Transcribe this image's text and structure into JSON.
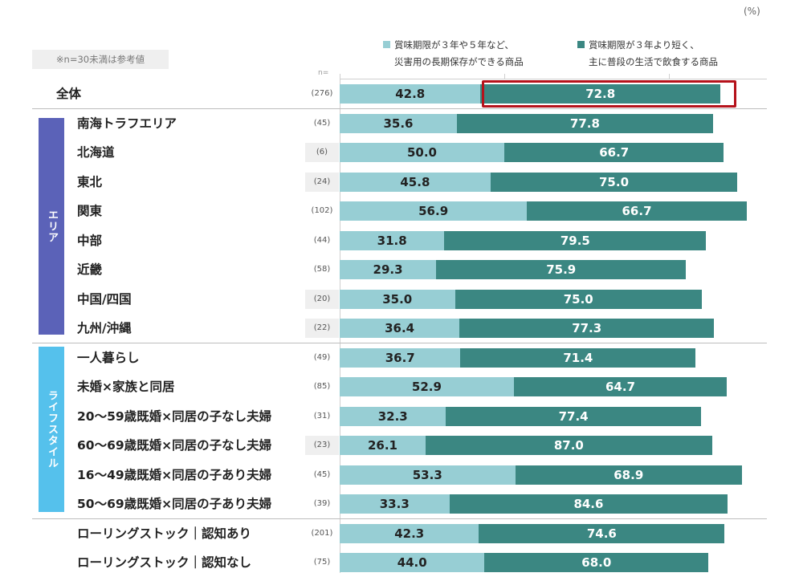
{
  "chart_data": {
    "type": "bar",
    "orientation": "horizontal",
    "stacked": true,
    "unit_label": "(%)",
    "note": "※n=30未満は参考値",
    "n_header": "n=",
    "legend": [
      {
        "line1": "賞味期限が３年や５年など、",
        "line2": "災害用の長期保存ができる商品",
        "color": "#97ced4"
      },
      {
        "line1": "賞味期限が３年より短く、",
        "line2": "主に普段の生活で飲食する商品",
        "color": "#3b8782"
      }
    ],
    "groups": [
      {
        "name": "",
        "label": "",
        "color": ""
      },
      {
        "name": "area",
        "label": "エリア",
        "color": "#5b62b8"
      },
      {
        "name": "life",
        "label": "ライフスタイル",
        "color": "#55c1ec"
      },
      {
        "name": "rolling",
        "label": "",
        "color": ""
      }
    ],
    "rows": [
      {
        "label": "全体",
        "n": "(276)",
        "a": 42.8,
        "b": 72.8,
        "group": 0,
        "shade": false,
        "highlight": true
      },
      {
        "label": "南海トラフエリア",
        "n": "(45)",
        "a": 35.6,
        "b": 77.8,
        "group": 1,
        "shade": false
      },
      {
        "label": "北海道",
        "n": "(6)",
        "a": 50.0,
        "b": 66.7,
        "group": 1,
        "shade": true
      },
      {
        "label": "東北",
        "n": "(24)",
        "a": 45.8,
        "b": 75.0,
        "group": 1,
        "shade": true
      },
      {
        "label": "関東",
        "n": "(102)",
        "a": 56.9,
        "b": 66.7,
        "group": 1,
        "shade": false
      },
      {
        "label": "中部",
        "n": "(44)",
        "a": 31.8,
        "b": 79.5,
        "group": 1,
        "shade": false
      },
      {
        "label": "近畿",
        "n": "(58)",
        "a": 29.3,
        "b": 75.9,
        "group": 1,
        "shade": false
      },
      {
        "label": "中国/四国",
        "n": "(20)",
        "a": 35.0,
        "b": 75.0,
        "group": 1,
        "shade": true
      },
      {
        "label": "九州/沖縄",
        "n": "(22)",
        "a": 36.4,
        "b": 77.3,
        "group": 1,
        "shade": true
      },
      {
        "label": "一人暮らし",
        "n": "(49)",
        "a": 36.7,
        "b": 71.4,
        "group": 2,
        "shade": false
      },
      {
        "label": "未婚×家族と同居",
        "n": "(85)",
        "a": 52.9,
        "b": 64.7,
        "group": 2,
        "shade": false
      },
      {
        "label": "20～59歳既婚×同居の子なし夫婦",
        "n": "(31)",
        "a": 32.3,
        "b": 77.4,
        "group": 2,
        "shade": false
      },
      {
        "label": "60～69歳既婚×同居の子なし夫婦",
        "n": "(23)",
        "a": 26.1,
        "b": 87.0,
        "group": 2,
        "shade": true
      },
      {
        "label": "16～49歳既婚×同居の子あり夫婦",
        "n": "(45)",
        "a": 53.3,
        "b": 68.9,
        "group": 2,
        "shade": false
      },
      {
        "label": "50～69歳既婚×同居の子あり夫婦",
        "n": "(39)",
        "a": 33.3,
        "b": 84.6,
        "group": 2,
        "shade": false
      },
      {
        "label": "ローリングストック｜認知あり",
        "n": "(201)",
        "a": 42.3,
        "b": 74.6,
        "group": 3,
        "shade": false
      },
      {
        "label": "ローリングストック｜認知なし",
        "n": "(75)",
        "a": 44.0,
        "b": 68.0,
        "group": 3,
        "shade": false
      }
    ]
  }
}
